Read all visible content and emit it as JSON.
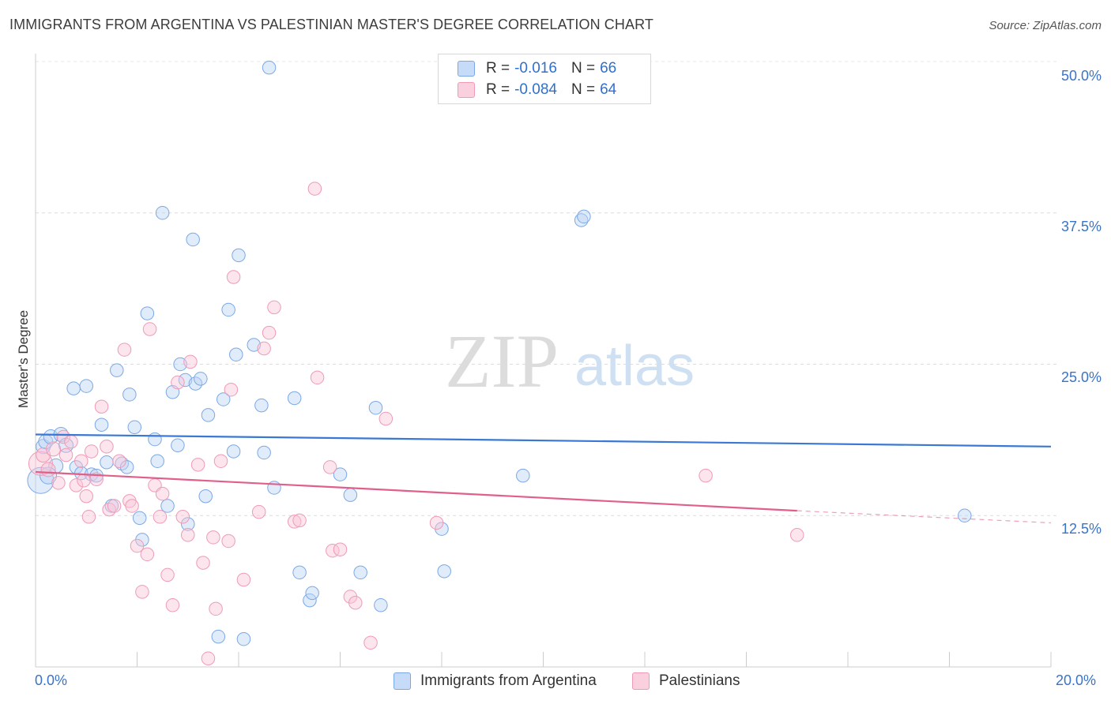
{
  "title": "IMMIGRANTS FROM ARGENTINA VS PALESTINIAN MASTER'S DEGREE CORRELATION CHART",
  "source": "Source: ZipAtlas.com",
  "watermark": {
    "zip": "ZIP",
    "atlas": "atlas"
  },
  "legend": {
    "r_label": "R =",
    "n_label": "N =",
    "rows": [
      {
        "r": "-0.016",
        "n": "66",
        "color": "#9ec2ef"
      },
      {
        "r": "-0.084",
        "n": "64",
        "color": "#f4a8c0"
      }
    ]
  },
  "chart_data": {
    "type": "scatter",
    "title": "IMMIGRANTS FROM ARGENTINA VS PALESTINIAN MASTER'S DEGREE CORRELATION CHART",
    "ylabel": "Master's Degree",
    "xlim": [
      0,
      20
    ],
    "ylim": [
      0,
      50
    ],
    "x_tick_labels": [
      "0.0%",
      "20.0%"
    ],
    "y_tick_labels": [
      "50.0%",
      "37.5%",
      "25.0%",
      "12.5%"
    ],
    "y_tick_values": [
      50,
      37.5,
      25,
      12.5
    ],
    "grid": true,
    "legend_position": "top-center",
    "series": [
      {
        "name": "Immigrants from Argentina",
        "color": "#3a78d4",
        "fill": "#bcd4f5",
        "trend": {
          "x": [
            0,
            20
          ],
          "y": [
            19.2,
            18.2
          ]
        },
        "points": [
          [
            0.1,
            15.4
          ],
          [
            0.15,
            18.2
          ],
          [
            0.2,
            18.6
          ],
          [
            0.3,
            19
          ],
          [
            0.4,
            16.6
          ],
          [
            0.5,
            19.2
          ],
          [
            0.6,
            18.3
          ],
          [
            0.75,
            23
          ],
          [
            0.8,
            16.5
          ],
          [
            0.9,
            16
          ],
          [
            1.0,
            23.2
          ],
          [
            1.1,
            15.9
          ],
          [
            1.2,
            15.8
          ],
          [
            1.3,
            20
          ],
          [
            1.4,
            16.9
          ],
          [
            1.5,
            13.3
          ],
          [
            1.6,
            24.5
          ],
          [
            1.7,
            16.8
          ],
          [
            1.8,
            16.5
          ],
          [
            1.85,
            22.5
          ],
          [
            1.95,
            19.8
          ],
          [
            2.05,
            12.3
          ],
          [
            2.1,
            10.5
          ],
          [
            2.2,
            29.2
          ],
          [
            2.35,
            18.8
          ],
          [
            2.4,
            17
          ],
          [
            2.5,
            37.5
          ],
          [
            2.6,
            13.3
          ],
          [
            2.7,
            22.7
          ],
          [
            2.8,
            18.3
          ],
          [
            2.85,
            25
          ],
          [
            2.95,
            23.7
          ],
          [
            3.0,
            11.8
          ],
          [
            3.1,
            35.3
          ],
          [
            3.15,
            23.4
          ],
          [
            3.25,
            23.8
          ],
          [
            3.35,
            14.1
          ],
          [
            3.4,
            20.8
          ],
          [
            3.6,
            2.5
          ],
          [
            3.7,
            22.1
          ],
          [
            3.8,
            29.5
          ],
          [
            3.9,
            17.8
          ],
          [
            3.95,
            25.8
          ],
          [
            4.0,
            34
          ],
          [
            4.1,
            2.3
          ],
          [
            4.3,
            26.6
          ],
          [
            4.45,
            21.6
          ],
          [
            4.5,
            17.7
          ],
          [
            4.6,
            49.5
          ],
          [
            4.7,
            14.8
          ],
          [
            5.1,
            22.2
          ],
          [
            5.2,
            7.8
          ],
          [
            5.4,
            5.5
          ],
          [
            5.45,
            6.1
          ],
          [
            6.0,
            15.9
          ],
          [
            6.2,
            14.2
          ],
          [
            6.4,
            7.8
          ],
          [
            6.7,
            21.4
          ],
          [
            6.8,
            5.1
          ],
          [
            8.0,
            11.4
          ],
          [
            8.05,
            7.9
          ],
          [
            9.6,
            15.8
          ],
          [
            10.75,
            36.9
          ],
          [
            10.8,
            37.2
          ],
          [
            18.3,
            12.5
          ],
          [
            0.25,
            15.8
          ]
        ],
        "sizes": [
          22,
          12,
          12,
          12,
          12,
          12,
          12,
          11,
          11,
          11,
          11,
          11,
          11,
          11,
          11,
          11,
          11,
          11,
          11,
          11,
          11,
          11,
          11,
          11,
          11,
          11,
          11,
          11,
          11,
          11,
          11,
          11,
          11,
          11,
          11,
          11,
          11,
          11,
          11,
          11,
          11,
          11,
          11,
          11,
          11,
          11,
          11,
          11,
          11,
          11,
          11,
          11,
          11,
          11,
          11,
          11,
          11,
          11,
          11,
          11,
          11,
          11,
          11,
          11,
          11,
          14
        ]
      },
      {
        "name": "Palestinians",
        "color": "#e0608a",
        "fill": "#f8c6d6",
        "trend": {
          "x": [
            0,
            15
          ],
          "y": [
            16.1,
            12.9
          ]
        },
        "trend_dashed": {
          "x": [
            15,
            20
          ],
          "y": [
            12.9,
            11.9
          ]
        },
        "points": [
          [
            0.1,
            16.8
          ],
          [
            0.15,
            17.5
          ],
          [
            0.25,
            16.3
          ],
          [
            0.35,
            18
          ],
          [
            0.45,
            15.2
          ],
          [
            0.55,
            19
          ],
          [
            0.6,
            17.5
          ],
          [
            0.7,
            18.6
          ],
          [
            0.8,
            15
          ],
          [
            0.9,
            17
          ],
          [
            0.95,
            15.4
          ],
          [
            1.0,
            14.1
          ],
          [
            1.05,
            12.4
          ],
          [
            1.1,
            17.8
          ],
          [
            1.2,
            15.5
          ],
          [
            1.3,
            21.5
          ],
          [
            1.4,
            18.2
          ],
          [
            1.45,
            13
          ],
          [
            1.55,
            13.3
          ],
          [
            1.65,
            17
          ],
          [
            1.75,
            26.2
          ],
          [
            1.85,
            13.7
          ],
          [
            1.9,
            13.3
          ],
          [
            2.0,
            10
          ],
          [
            2.1,
            6.2
          ],
          [
            2.2,
            9.3
          ],
          [
            2.25,
            27.9
          ],
          [
            2.35,
            15
          ],
          [
            2.45,
            12.4
          ],
          [
            2.5,
            14.3
          ],
          [
            2.6,
            7.6
          ],
          [
            2.7,
            5.1
          ],
          [
            2.8,
            23.5
          ],
          [
            2.9,
            12.4
          ],
          [
            3.0,
            10.9
          ],
          [
            3.05,
            25.2
          ],
          [
            3.2,
            16.7
          ],
          [
            3.3,
            8.6
          ],
          [
            3.4,
            0.7
          ],
          [
            3.5,
            10.7
          ],
          [
            3.55,
            4.8
          ],
          [
            3.65,
            17
          ],
          [
            3.8,
            10.4
          ],
          [
            3.85,
            22.9
          ],
          [
            3.9,
            32.2
          ],
          [
            4.1,
            7.2
          ],
          [
            4.4,
            12.8
          ],
          [
            4.5,
            26.3
          ],
          [
            4.6,
            27.6
          ],
          [
            4.7,
            29.7
          ],
          [
            5.1,
            12
          ],
          [
            5.2,
            12.1
          ],
          [
            5.5,
            39.5
          ],
          [
            5.55,
            23.9
          ],
          [
            5.8,
            16.5
          ],
          [
            5.85,
            9.6
          ],
          [
            6.0,
            9.7
          ],
          [
            6.2,
            5.8
          ],
          [
            6.3,
            5.3
          ],
          [
            6.6,
            2
          ],
          [
            6.9,
            20.5
          ],
          [
            7.9,
            11.9
          ],
          [
            13.2,
            15.8
          ],
          [
            15.0,
            10.9
          ]
        ],
        "sizes": [
          20,
          12,
          12,
          12,
          11,
          11,
          11,
          11,
          11,
          11,
          11,
          11,
          11,
          11,
          11,
          11,
          11,
          11,
          11,
          11,
          11,
          11,
          11,
          11,
          11,
          11,
          11,
          11,
          11,
          11,
          11,
          11,
          11,
          11,
          11,
          11,
          11,
          11,
          11,
          11,
          11,
          11,
          11,
          11,
          11,
          11,
          11,
          11,
          11,
          11,
          11,
          11,
          11,
          11,
          11,
          11,
          11,
          11,
          11,
          11,
          11,
          11,
          11,
          11
        ]
      }
    ]
  }
}
